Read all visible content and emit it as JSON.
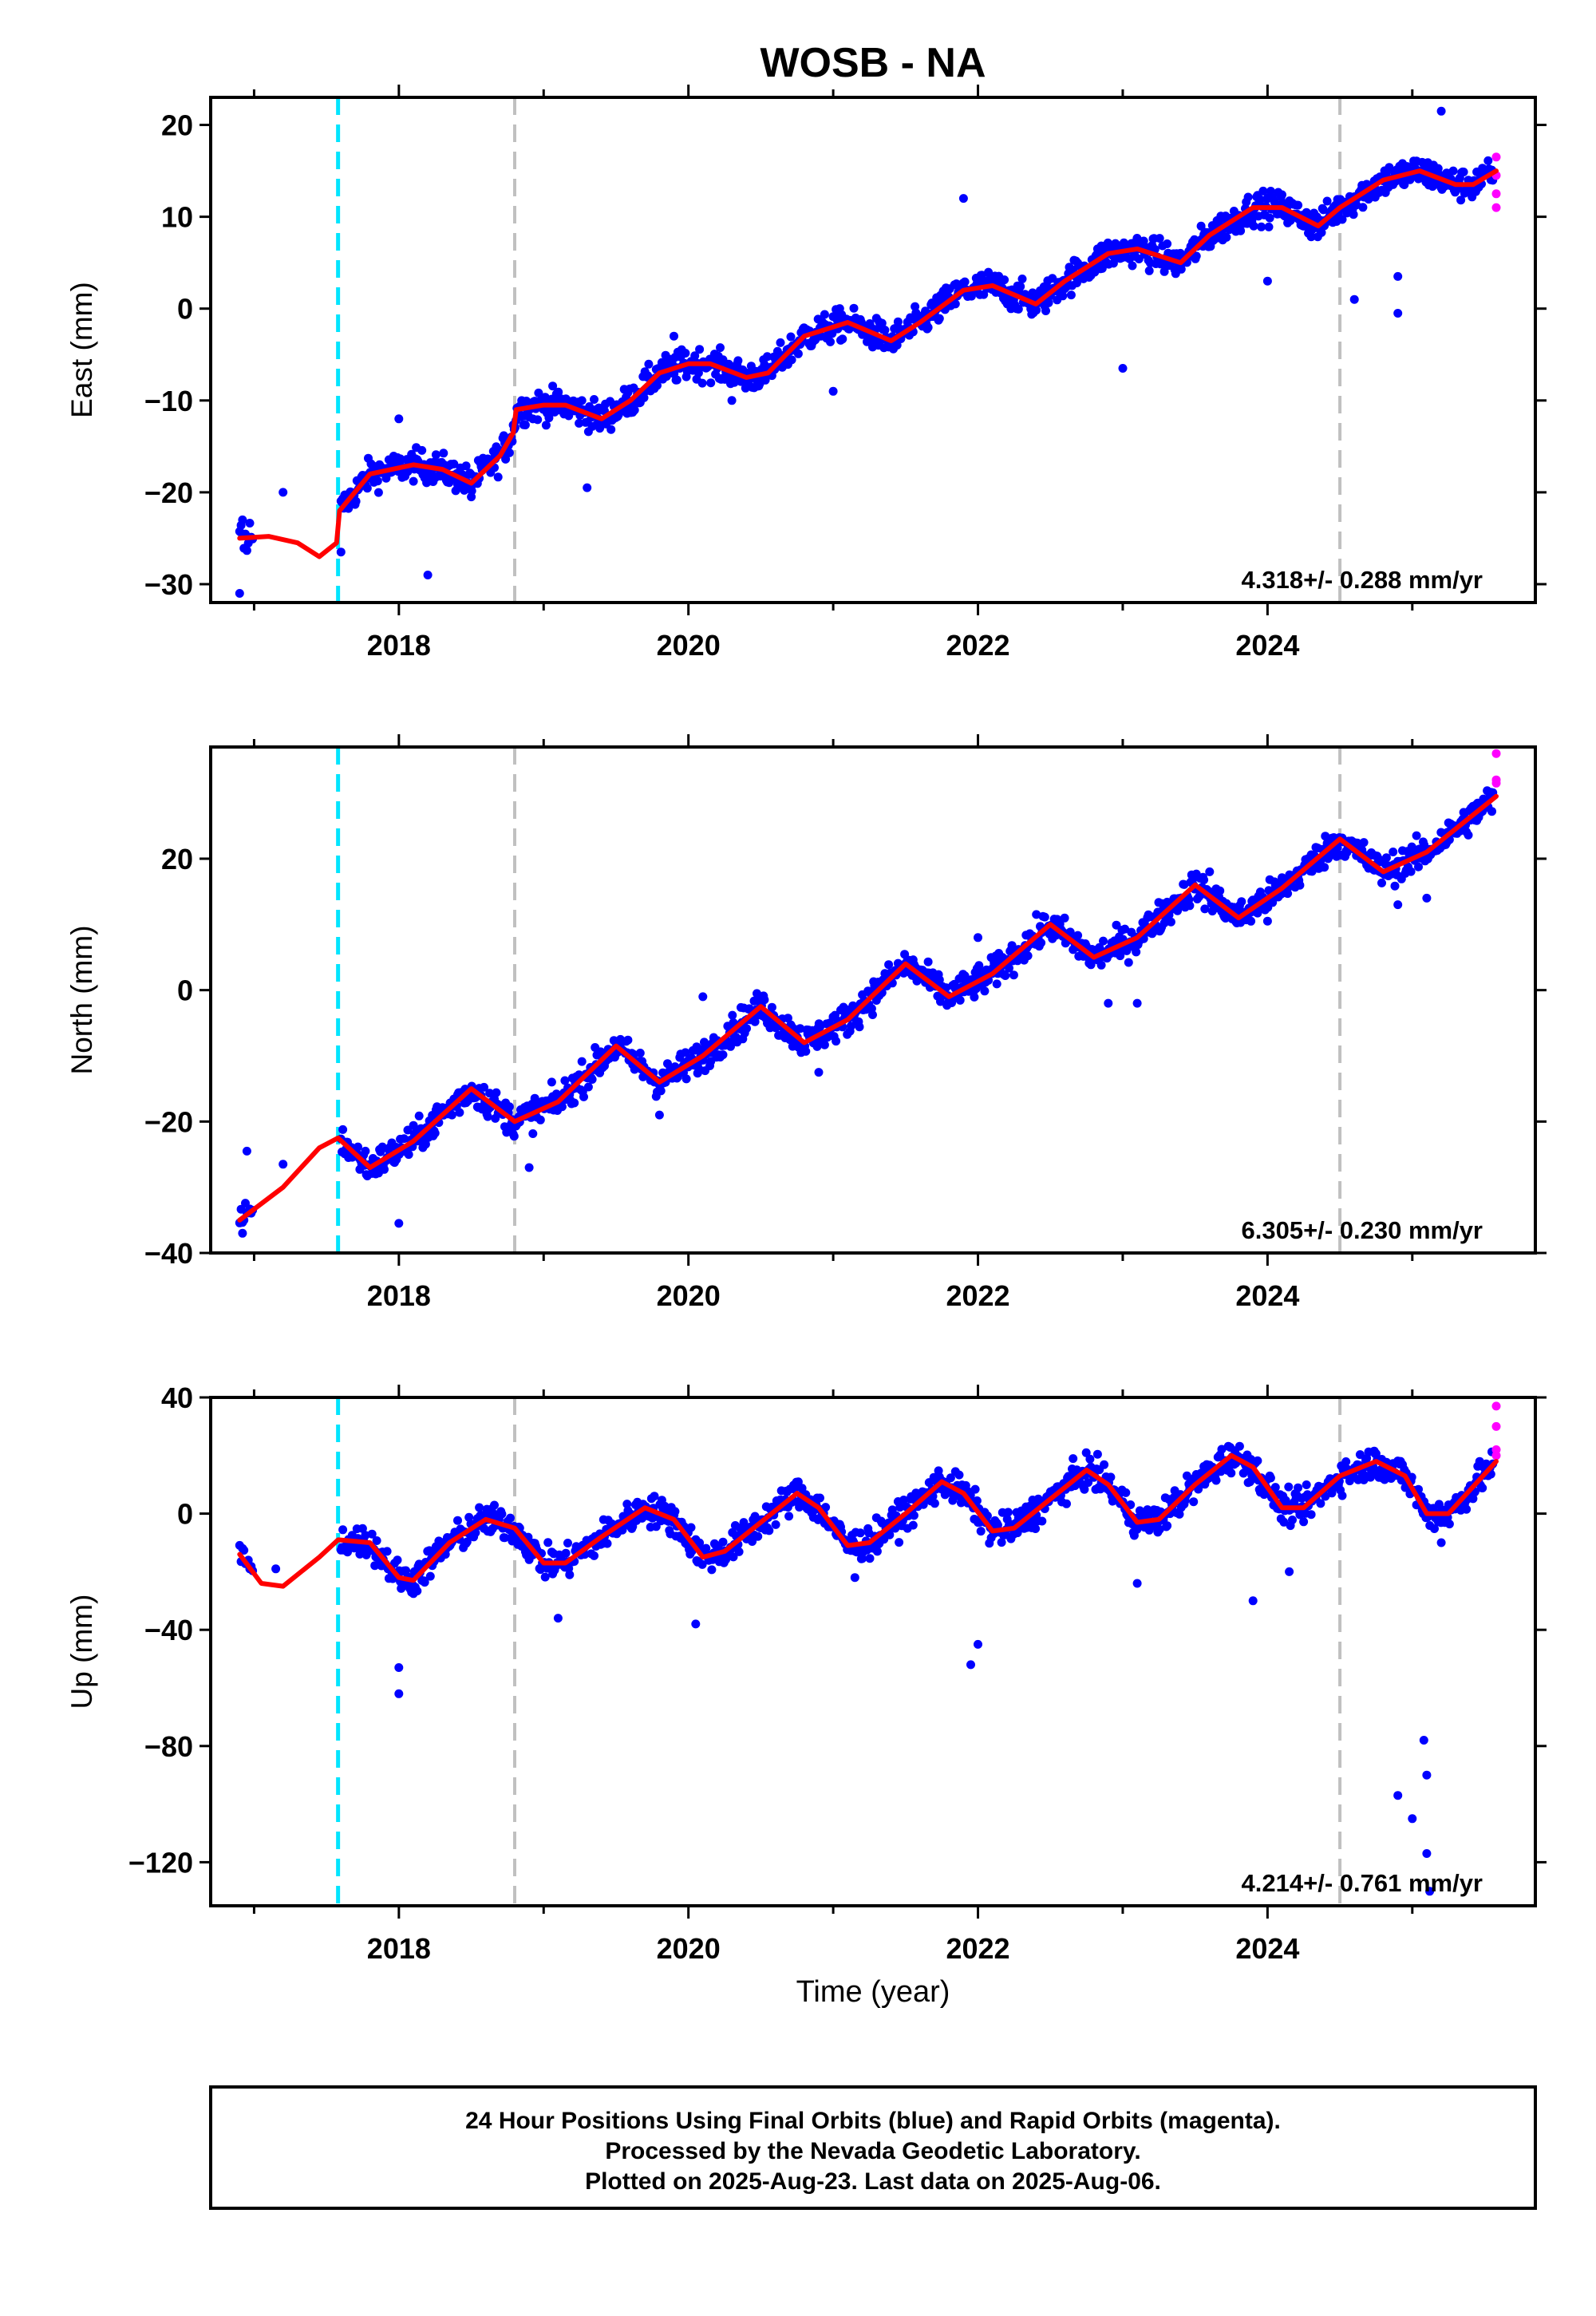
{
  "chart_data": {
    "type": "scatter",
    "title": "WOSB - NA",
    "xlabel": "Time (year)",
    "xlim": [
      2016.7,
      2025.85
    ],
    "x_ticks": [
      2018,
      2020,
      2022,
      2024
    ],
    "event_lines": [
      {
        "x": 2017.58,
        "color": "#00e5ff",
        "style": "dashed"
      },
      {
        "x": 2018.8,
        "color": "#c0c0c0",
        "style": "dashed"
      },
      {
        "x": 2024.5,
        "color": "#c0c0c0",
        "style": "dashed"
      }
    ],
    "colors": {
      "final": "#0000ff",
      "rapid": "#ff00ff",
      "model": "#ff0000"
    },
    "panels": [
      {
        "name": "east",
        "ylabel": "East (mm)",
        "ylim": [
          -32,
          23
        ],
        "yticks": [
          -30,
          -20,
          -10,
          0,
          10,
          20
        ],
        "rate_label": "4.318+/- 0.288 mm/yr",
        "model": [
          [
            2016.9,
            -25
          ],
          [
            2017.1,
            -24.8
          ],
          [
            2017.3,
            -25.5
          ],
          [
            2017.45,
            -27
          ],
          [
            2017.57,
            -25.5
          ],
          [
            2017.59,
            -22
          ],
          [
            2017.8,
            -18
          ],
          [
            2018.1,
            -17
          ],
          [
            2018.3,
            -17.5
          ],
          [
            2018.5,
            -19
          ],
          [
            2018.7,
            -16
          ],
          [
            2018.79,
            -13.5
          ],
          [
            2018.81,
            -11
          ],
          [
            2019.0,
            -10.5
          ],
          [
            2019.15,
            -10.5
          ],
          [
            2019.4,
            -12
          ],
          [
            2019.6,
            -10
          ],
          [
            2019.8,
            -7
          ],
          [
            2020.0,
            -6
          ],
          [
            2020.15,
            -6
          ],
          [
            2020.4,
            -7.5
          ],
          [
            2020.55,
            -7
          ],
          [
            2020.8,
            -3
          ],
          [
            2021.1,
            -1.5
          ],
          [
            2021.4,
            -3.5
          ],
          [
            2021.6,
            -1.5
          ],
          [
            2021.9,
            2
          ],
          [
            2022.1,
            2.5
          ],
          [
            2022.4,
            0.5
          ],
          [
            2022.6,
            3
          ],
          [
            2022.9,
            6
          ],
          [
            2023.1,
            6.5
          ],
          [
            2023.4,
            5
          ],
          [
            2023.6,
            8
          ],
          [
            2023.9,
            11
          ],
          [
            2024.1,
            11
          ],
          [
            2024.35,
            9
          ],
          [
            2024.5,
            11
          ],
          [
            2024.8,
            14
          ],
          [
            2025.05,
            15
          ],
          [
            2025.3,
            13.5
          ],
          [
            2025.42,
            13.5
          ],
          [
            2025.58,
            15
          ]
        ],
        "points_seed": [
          [
            2016.9,
            -31
          ],
          [
            2016.92,
            -23
          ],
          [
            2017.2,
            -20
          ],
          [
            2017.6,
            -26.5
          ],
          [
            2018.0,
            -12
          ],
          [
            2018.2,
            -29
          ],
          [
            2018.5,
            -20.5
          ],
          [
            2019.3,
            -19.5
          ],
          [
            2019.9,
            -3
          ],
          [
            2020.3,
            -10
          ],
          [
            2021.0,
            -9
          ],
          [
            2021.9,
            12
          ],
          [
            2023.0,
            -6.5
          ],
          [
            2024.0,
            3
          ],
          [
            2024.6,
            1
          ],
          [
            2024.9,
            3.5
          ],
          [
            2024.9,
            -0.5
          ],
          [
            2025.2,
            21.5
          ]
        ],
        "rapid": [
          [
            2025.58,
            16.5
          ],
          [
            2025.58,
            14.5
          ],
          [
            2025.58,
            12.5
          ],
          [
            2025.58,
            11
          ]
        ]
      },
      {
        "name": "north",
        "ylabel": "North (mm)",
        "ylim": [
          -40,
          37
        ],
        "yticks": [
          -40,
          -20,
          0,
          20
        ],
        "rate_label": "6.305+/- 0.230 mm/yr",
        "model": [
          [
            2016.9,
            -35
          ],
          [
            2017.2,
            -30
          ],
          [
            2017.45,
            -24
          ],
          [
            2017.58,
            -22.5
          ],
          [
            2017.8,
            -27
          ],
          [
            2018.1,
            -23
          ],
          [
            2018.5,
            -15
          ],
          [
            2018.8,
            -20
          ],
          [
            2019.1,
            -17
          ],
          [
            2019.5,
            -8.5
          ],
          [
            2019.8,
            -14
          ],
          [
            2020.1,
            -10
          ],
          [
            2020.5,
            -2.5
          ],
          [
            2020.8,
            -8
          ],
          [
            2021.1,
            -4.5
          ],
          [
            2021.5,
            4
          ],
          [
            2021.8,
            -1
          ],
          [
            2022.1,
            2.5
          ],
          [
            2022.5,
            10
          ],
          [
            2022.8,
            5
          ],
          [
            2023.1,
            8
          ],
          [
            2023.5,
            16
          ],
          [
            2023.8,
            11
          ],
          [
            2024.1,
            15.5
          ],
          [
            2024.5,
            23
          ],
          [
            2024.8,
            18
          ],
          [
            2025.1,
            21
          ],
          [
            2025.58,
            29.5
          ]
        ],
        "points_seed": [
          [
            2016.92,
            -37
          ],
          [
            2016.95,
            -24.5
          ],
          [
            2017.2,
            -26.5
          ],
          [
            2018.0,
            -35.5
          ],
          [
            2018.9,
            -27
          ],
          [
            2019.8,
            -19
          ],
          [
            2020.1,
            -1
          ],
          [
            2020.9,
            -12.5
          ],
          [
            2022.0,
            8
          ],
          [
            2022.9,
            -2
          ],
          [
            2023.1,
            -2
          ],
          [
            2023.6,
            18
          ],
          [
            2024.0,
            10.5
          ],
          [
            2024.9,
            13
          ],
          [
            2025.1,
            14
          ]
        ],
        "rapid": [
          [
            2025.58,
            36
          ],
          [
            2025.58,
            32
          ],
          [
            2025.58,
            31.5
          ]
        ]
      },
      {
        "name": "up",
        "ylabel": "Up (mm)",
        "ylim": [
          -135,
          40
        ],
        "yticks": [
          -120,
          -80,
          -40,
          0,
          40
        ],
        "rate_label": "4.214+/- 0.761 mm/yr",
        "model": [
          [
            2016.9,
            -14
          ],
          [
            2017.05,
            -24
          ],
          [
            2017.2,
            -25
          ],
          [
            2017.45,
            -15
          ],
          [
            2017.58,
            -9
          ],
          [
            2017.8,
            -10
          ],
          [
            2018.0,
            -22
          ],
          [
            2018.1,
            -23
          ],
          [
            2018.35,
            -10
          ],
          [
            2018.6,
            -2
          ],
          [
            2018.8,
            -5
          ],
          [
            2019.0,
            -17
          ],
          [
            2019.15,
            -17
          ],
          [
            2019.4,
            -8
          ],
          [
            2019.7,
            2
          ],
          [
            2019.9,
            -2
          ],
          [
            2020.1,
            -15
          ],
          [
            2020.25,
            -13
          ],
          [
            2020.5,
            -3
          ],
          [
            2020.75,
            7
          ],
          [
            2020.9,
            2
          ],
          [
            2021.1,
            -11
          ],
          [
            2021.25,
            -10
          ],
          [
            2021.5,
            0
          ],
          [
            2021.75,
            11
          ],
          [
            2021.9,
            7
          ],
          [
            2022.1,
            -6
          ],
          [
            2022.25,
            -5
          ],
          [
            2022.5,
            5
          ],
          [
            2022.75,
            15
          ],
          [
            2022.9,
            10
          ],
          [
            2023.1,
            -3
          ],
          [
            2023.25,
            -2
          ],
          [
            2023.5,
            10
          ],
          [
            2023.75,
            20
          ],
          [
            2023.9,
            16
          ],
          [
            2024.1,
            2
          ],
          [
            2024.25,
            2
          ],
          [
            2024.5,
            13
          ],
          [
            2024.75,
            18
          ],
          [
            2024.95,
            13
          ],
          [
            2025.1,
            0
          ],
          [
            2025.25,
            0
          ],
          [
            2025.58,
            18
          ]
        ],
        "points_seed": [
          [
            2017.15,
            -19
          ],
          [
            2018.0,
            -53
          ],
          [
            2018.0,
            -62
          ],
          [
            2019.1,
            -36
          ],
          [
            2020.05,
            -38
          ],
          [
            2021.15,
            -22
          ],
          [
            2021.95,
            -52
          ],
          [
            2022.0,
            -45
          ],
          [
            2023.1,
            -24
          ],
          [
            2023.9,
            -30
          ],
          [
            2024.15,
            -20
          ],
          [
            2024.9,
            -97
          ],
          [
            2025.0,
            -105
          ],
          [
            2025.08,
            -78
          ],
          [
            2025.1,
            -90
          ],
          [
            2025.1,
            -117
          ],
          [
            2025.12,
            -130
          ],
          [
            2025.2,
            -10
          ]
        ],
        "rapid": [
          [
            2025.58,
            37
          ],
          [
            2025.58,
            30
          ],
          [
            2025.58,
            22
          ],
          [
            2025.58,
            20
          ]
        ]
      }
    ],
    "footer_lines": [
      "24 Hour Positions Using Final Orbits (blue) and Rapid Orbits (magenta).",
      "Processed by the Nevada Geodetic Laboratory.",
      "Plotted on 2025-Aug-23. Last data on 2025-Aug-06."
    ]
  }
}
